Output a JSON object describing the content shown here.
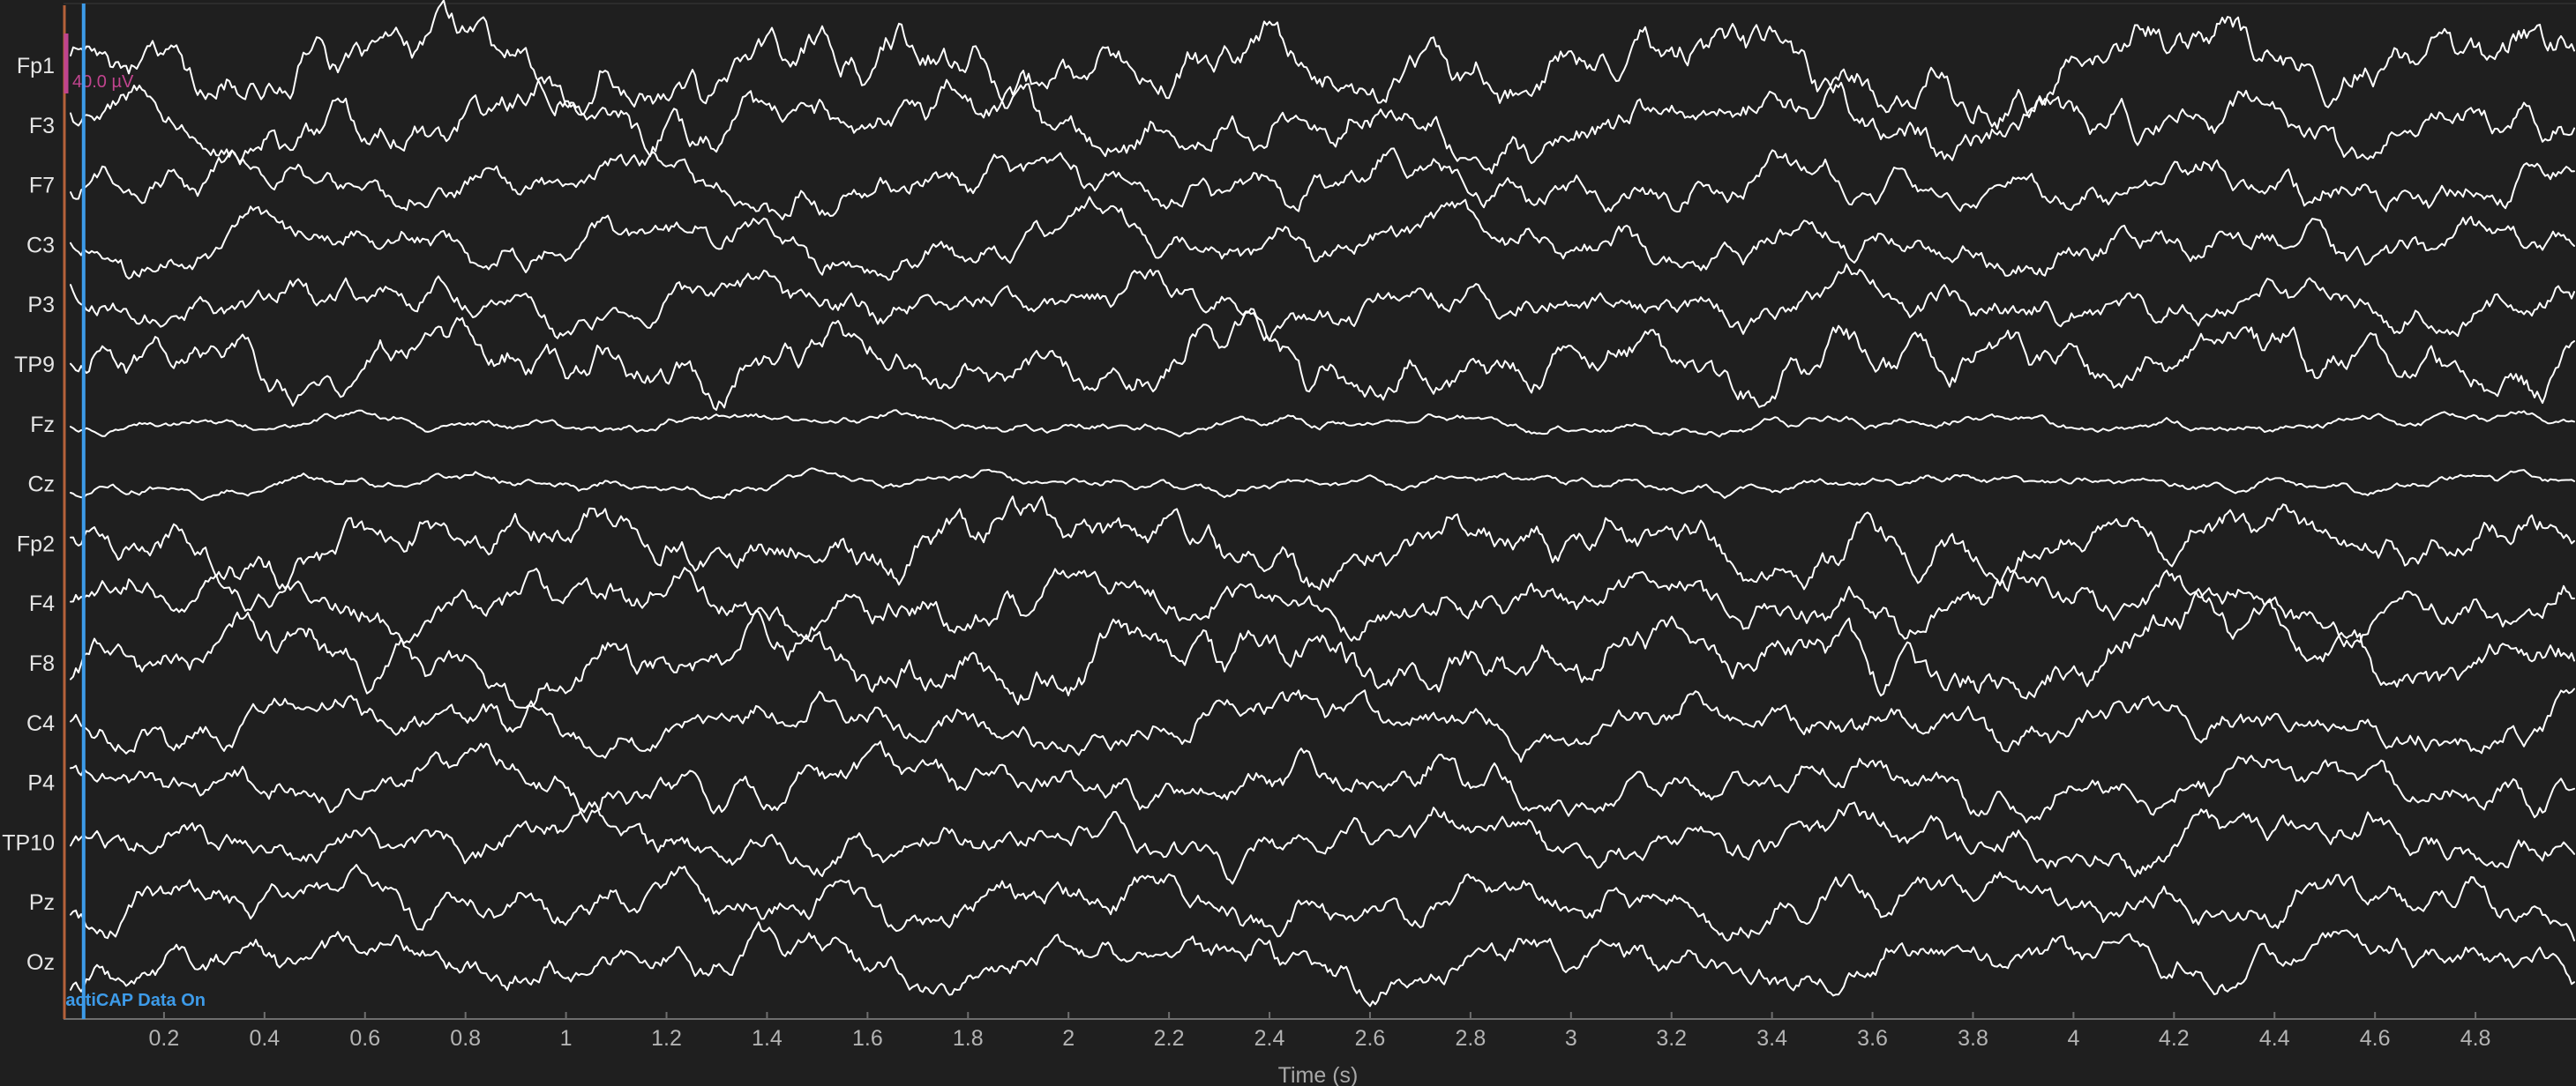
{
  "viewer": {
    "channels": [
      "Fp1",
      "F3",
      "F7",
      "C3",
      "P3",
      "TP9",
      "Fz",
      "Cz",
      "Fp2",
      "F4",
      "F8",
      "C4",
      "P4",
      "TP10",
      "Pz",
      "Oz"
    ],
    "scale_bar": {
      "label": "40.0 µV",
      "color": "#c0448e"
    },
    "annotation": {
      "label": "actiCAP Data On",
      "time": 0.04,
      "color": "#3d9be9"
    },
    "start_marker_color": "#b5613a",
    "x_axis": {
      "title": "Time (s)",
      "range": [
        0,
        5
      ],
      "ticks": [
        "0.2",
        "0.4",
        "0.6",
        "0.8",
        "1",
        "1.2",
        "1.4",
        "1.6",
        "1.8",
        "2",
        "2.2",
        "2.4",
        "2.6",
        "2.8",
        "3",
        "3.2",
        "3.4",
        "3.6",
        "3.8",
        "4",
        "4.2",
        "4.4",
        "4.6",
        "4.8"
      ]
    },
    "colors": {
      "background": "#1f1f1f",
      "trace": "#ffffff",
      "axis": "#6e6e6e"
    }
  }
}
